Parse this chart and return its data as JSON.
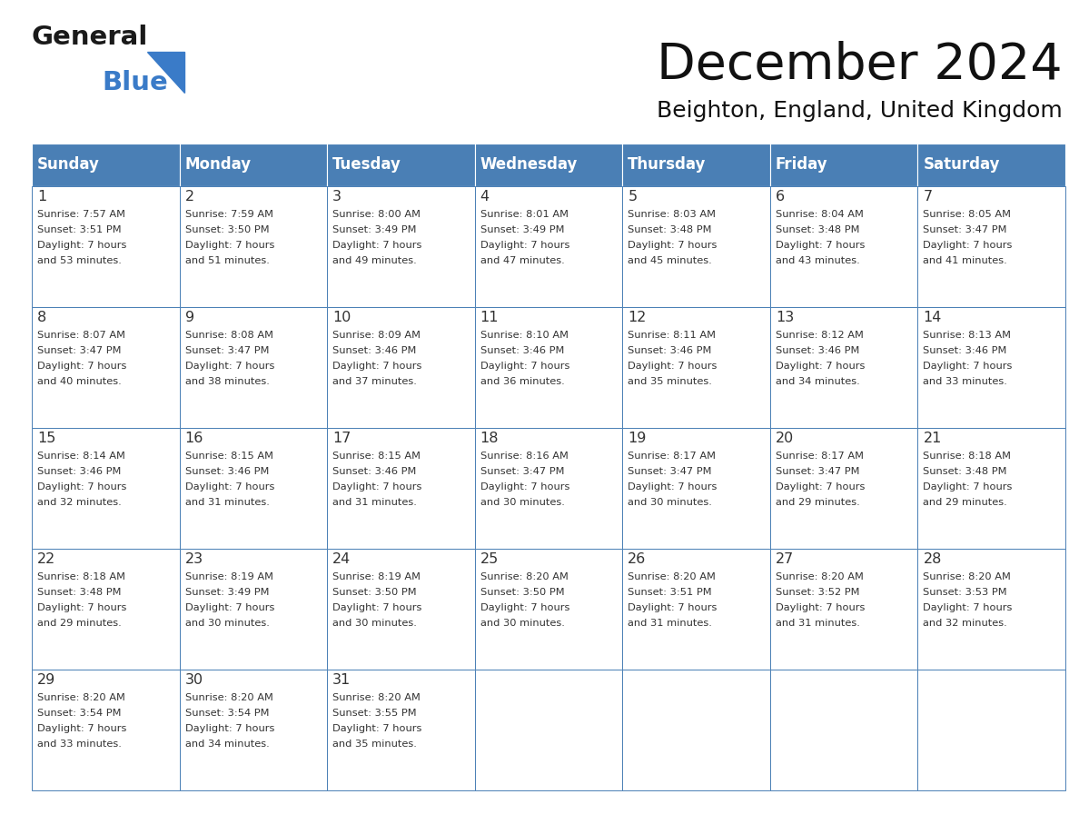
{
  "title": "December 2024",
  "subtitle": "Beighton, England, United Kingdom",
  "days_of_week": [
    "Sunday",
    "Monday",
    "Tuesday",
    "Wednesday",
    "Thursday",
    "Friday",
    "Saturday"
  ],
  "header_bg": "#4a7fb5",
  "header_text": "#ffffff",
  "cell_bg": "#ffffff",
  "cell_border": "#4a7fb5",
  "row_border": "#4a7fb5",
  "text_color": "#333333",
  "title_color": "#111111",
  "logo_color_general": "#1a1a1a",
  "logo_color_blue": "#3a7bc8",
  "calendar_data": [
    [
      {
        "day": 1,
        "sunrise": "7:57 AM",
        "sunset": "3:51 PM",
        "daylight": "7 hours and 53 minutes."
      },
      {
        "day": 2,
        "sunrise": "7:59 AM",
        "sunset": "3:50 PM",
        "daylight": "7 hours and 51 minutes."
      },
      {
        "day": 3,
        "sunrise": "8:00 AM",
        "sunset": "3:49 PM",
        "daylight": "7 hours and 49 minutes."
      },
      {
        "day": 4,
        "sunrise": "8:01 AM",
        "sunset": "3:49 PM",
        "daylight": "7 hours and 47 minutes."
      },
      {
        "day": 5,
        "sunrise": "8:03 AM",
        "sunset": "3:48 PM",
        "daylight": "7 hours and 45 minutes."
      },
      {
        "day": 6,
        "sunrise": "8:04 AM",
        "sunset": "3:48 PM",
        "daylight": "7 hours and 43 minutes."
      },
      {
        "day": 7,
        "sunrise": "8:05 AM",
        "sunset": "3:47 PM",
        "daylight": "7 hours and 41 minutes."
      }
    ],
    [
      {
        "day": 8,
        "sunrise": "8:07 AM",
        "sunset": "3:47 PM",
        "daylight": "7 hours and 40 minutes."
      },
      {
        "day": 9,
        "sunrise": "8:08 AM",
        "sunset": "3:47 PM",
        "daylight": "7 hours and 38 minutes."
      },
      {
        "day": 10,
        "sunrise": "8:09 AM",
        "sunset": "3:46 PM",
        "daylight": "7 hours and 37 minutes."
      },
      {
        "day": 11,
        "sunrise": "8:10 AM",
        "sunset": "3:46 PM",
        "daylight": "7 hours and 36 minutes."
      },
      {
        "day": 12,
        "sunrise": "8:11 AM",
        "sunset": "3:46 PM",
        "daylight": "7 hours and 35 minutes."
      },
      {
        "day": 13,
        "sunrise": "8:12 AM",
        "sunset": "3:46 PM",
        "daylight": "7 hours and 34 minutes."
      },
      {
        "day": 14,
        "sunrise": "8:13 AM",
        "sunset": "3:46 PM",
        "daylight": "7 hours and 33 minutes."
      }
    ],
    [
      {
        "day": 15,
        "sunrise": "8:14 AM",
        "sunset": "3:46 PM",
        "daylight": "7 hours and 32 minutes."
      },
      {
        "day": 16,
        "sunrise": "8:15 AM",
        "sunset": "3:46 PM",
        "daylight": "7 hours and 31 minutes."
      },
      {
        "day": 17,
        "sunrise": "8:15 AM",
        "sunset": "3:46 PM",
        "daylight": "7 hours and 31 minutes."
      },
      {
        "day": 18,
        "sunrise": "8:16 AM",
        "sunset": "3:47 PM",
        "daylight": "7 hours and 30 minutes."
      },
      {
        "day": 19,
        "sunrise": "8:17 AM",
        "sunset": "3:47 PM",
        "daylight": "7 hours and 30 minutes."
      },
      {
        "day": 20,
        "sunrise": "8:17 AM",
        "sunset": "3:47 PM",
        "daylight": "7 hours and 29 minutes."
      },
      {
        "day": 21,
        "sunrise": "8:18 AM",
        "sunset": "3:48 PM",
        "daylight": "7 hours and 29 minutes."
      }
    ],
    [
      {
        "day": 22,
        "sunrise": "8:18 AM",
        "sunset": "3:48 PM",
        "daylight": "7 hours and 29 minutes."
      },
      {
        "day": 23,
        "sunrise": "8:19 AM",
        "sunset": "3:49 PM",
        "daylight": "7 hours and 30 minutes."
      },
      {
        "day": 24,
        "sunrise": "8:19 AM",
        "sunset": "3:50 PM",
        "daylight": "7 hours and 30 minutes."
      },
      {
        "day": 25,
        "sunrise": "8:20 AM",
        "sunset": "3:50 PM",
        "daylight": "7 hours and 30 minutes."
      },
      {
        "day": 26,
        "sunrise": "8:20 AM",
        "sunset": "3:51 PM",
        "daylight": "7 hours and 31 minutes."
      },
      {
        "day": 27,
        "sunrise": "8:20 AM",
        "sunset": "3:52 PM",
        "daylight": "7 hours and 31 minutes."
      },
      {
        "day": 28,
        "sunrise": "8:20 AM",
        "sunset": "3:53 PM",
        "daylight": "7 hours and 32 minutes."
      }
    ],
    [
      {
        "day": 29,
        "sunrise": "8:20 AM",
        "sunset": "3:54 PM",
        "daylight": "7 hours and 33 minutes."
      },
      {
        "day": 30,
        "sunrise": "8:20 AM",
        "sunset": "3:54 PM",
        "daylight": "7 hours and 34 minutes."
      },
      {
        "day": 31,
        "sunrise": "8:20 AM",
        "sunset": "3:55 PM",
        "daylight": "7 hours and 35 minutes."
      },
      null,
      null,
      null,
      null
    ]
  ]
}
